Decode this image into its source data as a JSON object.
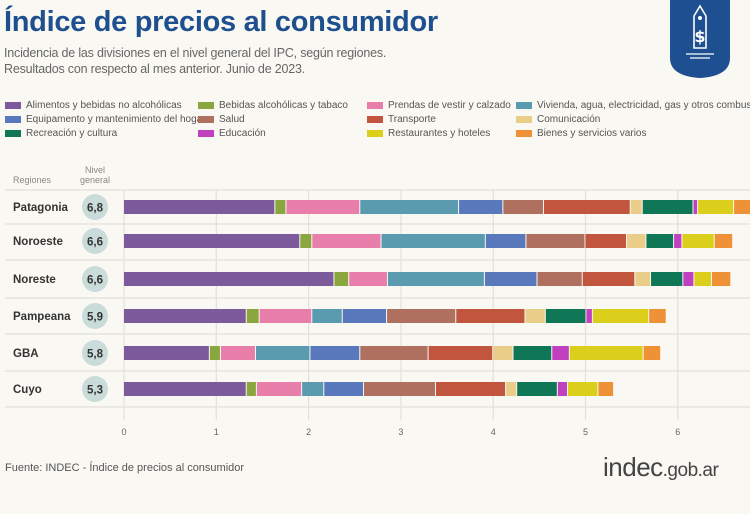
{
  "header": {
    "title": "Índice de precios al consumidor",
    "subtitle_1": "Incidencia de las divisiones en el nivel general del IPC, según regiones.",
    "subtitle_2": "Resultados con respecto al mes anterior. Junio de 2023.",
    "logo_icon": "price-tag-dollar-icon"
  },
  "chart_data": {
    "type": "bar",
    "orientation": "horizontal-stacked",
    "row_header": "Regiones",
    "total_header": "Nivel general",
    "categories": [
      "Patagonia",
      "Noroeste",
      "Noreste",
      "Pampeana",
      "GBA",
      "Cuyo"
    ],
    "totals": [
      "6,8",
      "6,6",
      "6,6",
      "5,9",
      "5,8",
      "5,3"
    ],
    "xlim": [
      0,
      6.8
    ],
    "xticks": [
      "0",
      "1",
      "2",
      "3",
      "4",
      "5",
      "6"
    ],
    "grid": true,
    "legend_position": "top",
    "series": [
      {
        "name": "Alimentos y bebidas no alcohólicas",
        "color": "#7d5a9c",
        "values": [
          1.64,
          1.91,
          2.28,
          1.33,
          0.93,
          1.33
        ]
      },
      {
        "name": "Bebidas alcohólicas y tabaco",
        "color": "#8aa63e",
        "values": [
          0.12,
          0.13,
          0.16,
          0.14,
          0.12,
          0.11
        ]
      },
      {
        "name": "Prendas de vestir y calzado",
        "color": "#e87fab",
        "values": [
          0.8,
          0.75,
          0.42,
          0.57,
          0.38,
          0.49
        ]
      },
      {
        "name": "Vivienda, agua, electricidad, gas y otros combustibles",
        "color": "#5b9bb0",
        "values": [
          1.07,
          1.13,
          1.05,
          0.33,
          0.59,
          0.24
        ]
      },
      {
        "name": "Equipamento y mantenimiento del hogar",
        "color": "#5a79bd",
        "values": [
          0.48,
          0.44,
          0.57,
          0.48,
          0.54,
          0.43
        ]
      },
      {
        "name": "Salud",
        "color": "#b07060",
        "values": [
          0.44,
          0.64,
          0.49,
          0.75,
          0.74,
          0.78
        ]
      },
      {
        "name": "Transporte",
        "color": "#c1553e",
        "values": [
          0.94,
          0.45,
          0.57,
          0.75,
          0.7,
          0.76
        ]
      },
      {
        "name": "Comunicación",
        "color": "#ebcd8a",
        "values": [
          0.13,
          0.21,
          0.17,
          0.22,
          0.22,
          0.12
        ]
      },
      {
        "name": "Recreación y cultura",
        "color": "#0f7656",
        "values": [
          0.55,
          0.3,
          0.35,
          0.44,
          0.42,
          0.44
        ]
      },
      {
        "name": "Educación",
        "color": "#c040c0",
        "values": [
          0.05,
          0.09,
          0.12,
          0.07,
          0.19,
          0.11
        ]
      },
      {
        "name": "Restaurantes y hoteles",
        "color": "#dbcf1b",
        "values": [
          0.39,
          0.35,
          0.19,
          0.61,
          0.8,
          0.33
        ]
      },
      {
        "name": "Bienes y servicios varios",
        "color": "#ef9136",
        "values": [
          0.19,
          0.2,
          0.21,
          0.19,
          0.19,
          0.17
        ]
      }
    ]
  },
  "footer": {
    "source": "Fuente: INDEC - Índice de precios al consumidor",
    "brand_main": "indec",
    "brand_domain": ".gob.ar"
  }
}
